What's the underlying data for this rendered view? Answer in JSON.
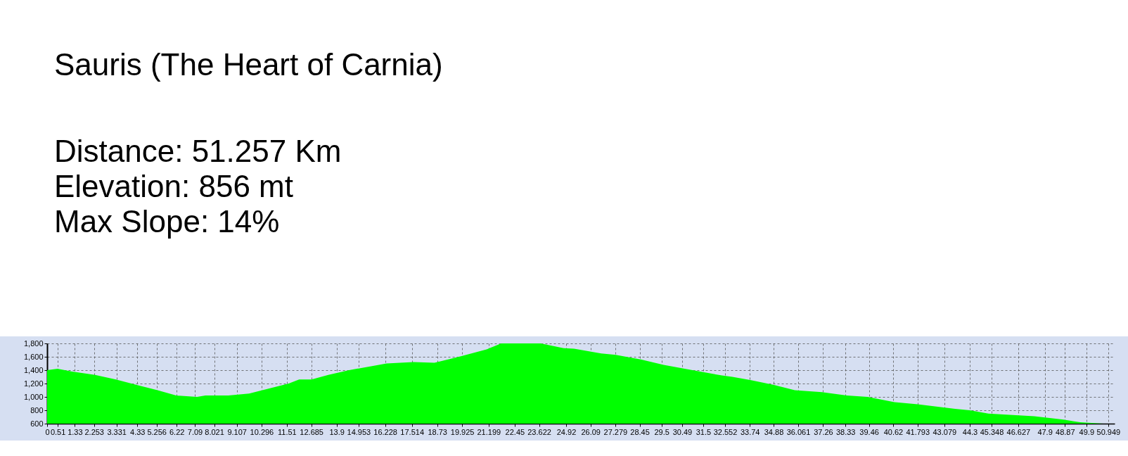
{
  "chart_data": {
    "type": "area",
    "title": "Sauris (The Heart of Carnia)",
    "annotations": [
      "Distance: 51.257 Km",
      "Elevation: 856 mt",
      "Max Slope: 14%"
    ],
    "x": [
      0,
      0.5,
      1.2,
      2.3,
      3.3,
      4.4,
      5.3,
      6.2,
      7.2,
      7.6,
      8.7,
      9.7,
      10.6,
      11.6,
      12.1,
      12.7,
      13.5,
      14.5,
      15.6,
      16.3,
      17.6,
      18.6,
      19.9,
      21.1,
      21.8,
      23.7,
      24.8,
      25.3,
      26.6,
      27.3,
      28.5,
      29.6,
      30.8,
      32.4,
      32.9,
      33.8,
      34.9,
      35.9,
      37.2,
      38.4,
      39.4,
      40.7,
      41.8,
      43.6,
      44.3,
      45.2,
      47.4,
      48.8,
      49.6,
      50.7,
      51.257
    ],
    "values": [
      1400,
      1420,
      1380,
      1330,
      1260,
      1170,
      1100,
      1020,
      1000,
      1020,
      1020,
      1050,
      1120,
      1200,
      1260,
      1260,
      1330,
      1400,
      1460,
      1500,
      1520,
      1510,
      1610,
      1710,
      1800,
      1800,
      1730,
      1720,
      1650,
      1630,
      1560,
      1480,
      1410,
      1320,
      1300,
      1250,
      1180,
      1100,
      1070,
      1020,
      1000,
      920,
      890,
      820,
      800,
      750,
      710,
      660,
      620,
      600,
      600
    ],
    "color": "#00ff00",
    "xlim": [
      0,
      51.257
    ],
    "xticks": [
      0,
      0.51,
      1.33,
      2.253,
      3.331,
      4.33,
      5.256,
      6.22,
      7.09,
      8.021,
      9.107,
      10.296,
      11.51,
      12.685,
      13.9,
      14.953,
      16.228,
      17.514,
      18.73,
      19.925,
      21.199,
      22.45,
      23.622,
      24.92,
      26.09,
      27.279,
      28.45,
      29.5,
      30.49,
      31.5,
      32.552,
      33.74,
      34.88,
      36.061,
      37.26,
      38.33,
      39.46,
      40.62,
      41.793,
      43.079,
      44.3,
      45.348,
      46.627,
      47.9,
      48.87,
      49.9,
      50.949
    ],
    "ylim": [
      600,
      1800
    ],
    "yticks": [
      600,
      800,
      {
        "value": 1000,
        "label": "1,000"
      },
      {
        "value": 1200,
        "label": "1,200"
      },
      {
        "value": 1400,
        "label": "1,400"
      },
      {
        "value": 1600,
        "label": "1,600"
      },
      {
        "value": 1800,
        "label": "1,800"
      }
    ],
    "grid": true
  }
}
